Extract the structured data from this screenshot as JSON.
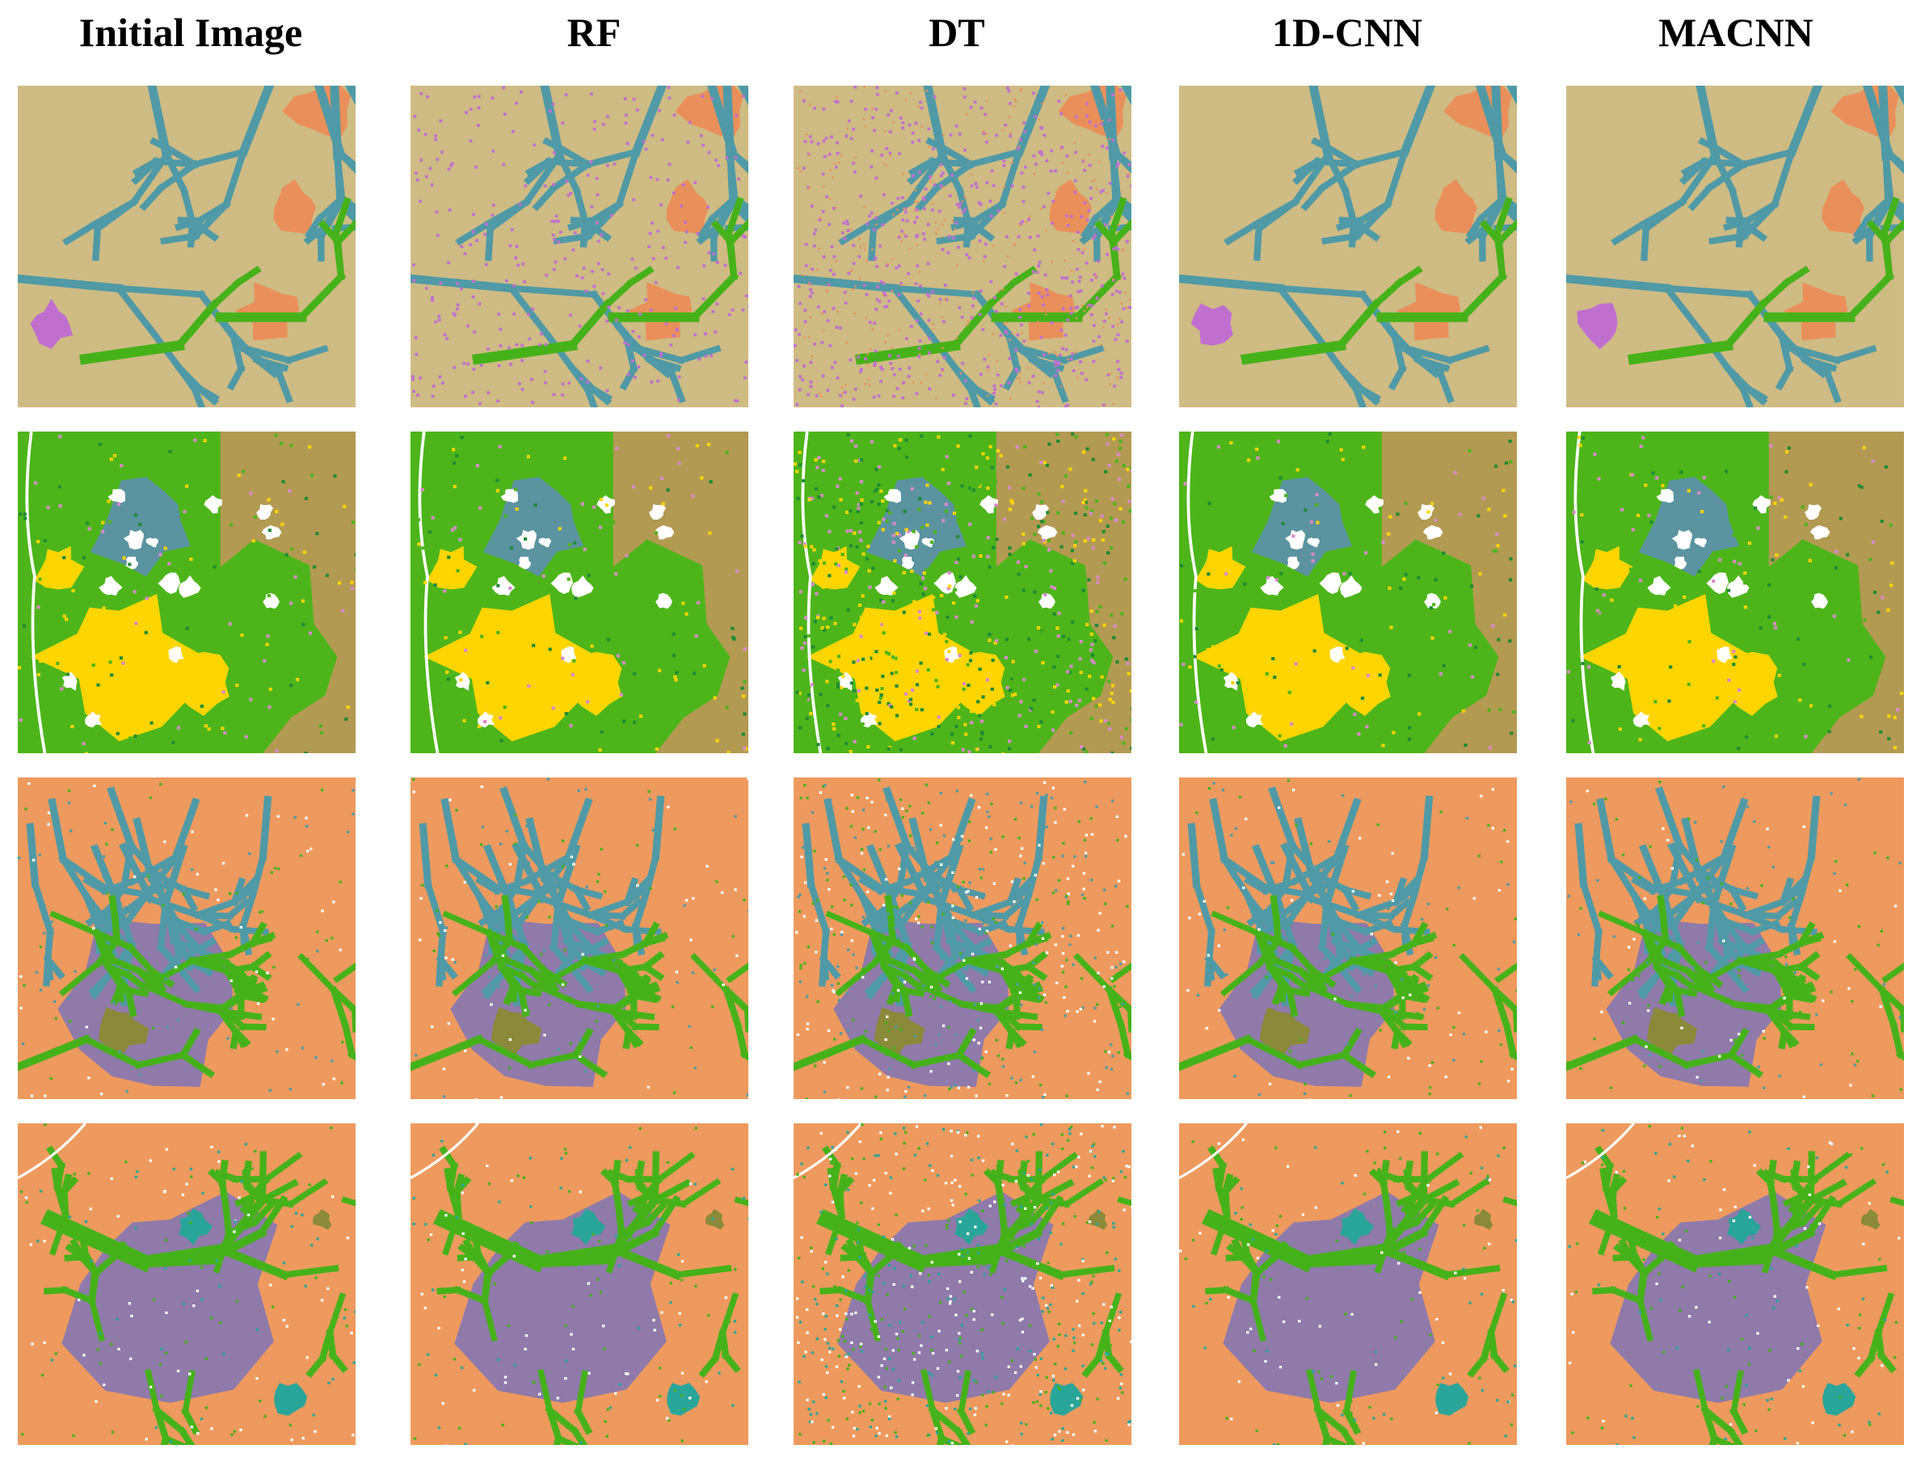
{
  "columns": [
    {
      "label": "Initial Image"
    },
    {
      "label": "RF"
    },
    {
      "label": "DT"
    },
    {
      "label": "1D-CNN"
    },
    {
      "label": "MACNN"
    }
  ],
  "rows": [
    {
      "scene": "scene-1",
      "background": "#cfbb84",
      "palette": {
        "water": "#4f9aa6",
        "vegetation": "#46b21a",
        "crop": "#e9905a",
        "magenta": "#c06fcf"
      }
    },
    {
      "scene": "scene-2",
      "background": "#b39a52",
      "palette": {
        "forest": "#4db51a",
        "yellow": "#ffd500",
        "slate": "#5b93a0",
        "white": "#ffffff",
        "dark-green": "#1f8a35",
        "pink": "#d88ac8"
      }
    },
    {
      "scene": "scene-3",
      "background": "#ee9a5e",
      "palette": {
        "water": "#4f9aa6",
        "vegetation": "#46b21a",
        "purple": "#8f7aaa",
        "olive": "#8a8a3a",
        "white": "#ffffff"
      }
    },
    {
      "scene": "scene-4",
      "background": "#ee9a5e",
      "palette": {
        "vegetation": "#46b21a",
        "purple": "#8f7aaa",
        "teal": "#2aa59a",
        "olive": "#8a8a3a",
        "white": "#ffffff"
      }
    }
  ]
}
